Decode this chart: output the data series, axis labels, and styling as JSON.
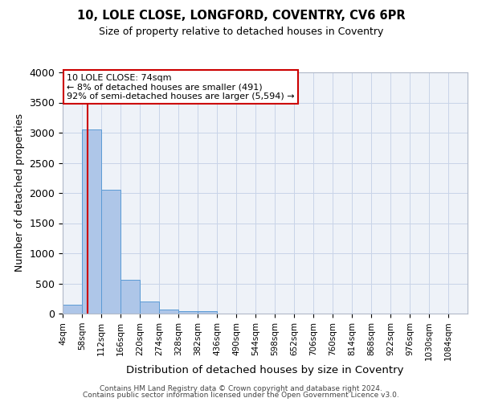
{
  "title": "10, LOLE CLOSE, LONGFORD, COVENTRY, CV6 6PR",
  "subtitle": "Size of property relative to detached houses in Coventry",
  "xlabel": "Distribution of detached houses by size in Coventry",
  "ylabel": "Number of detached properties",
  "bar_left_edges": [
    4,
    58,
    112,
    166,
    220,
    274,
    328,
    382,
    436,
    490,
    544,
    598,
    652,
    706,
    760,
    814,
    868,
    922,
    976,
    1030
  ],
  "bar_heights": [
    150,
    3060,
    2060,
    560,
    205,
    70,
    45,
    40,
    0,
    0,
    0,
    0,
    0,
    0,
    0,
    0,
    0,
    0,
    0,
    0
  ],
  "bin_width": 54,
  "bar_color": "#aec6e8",
  "bar_edge_color": "#5b9bd5",
  "vline_x": 74,
  "vline_color": "#cc0000",
  "ylim": [
    0,
    4000
  ],
  "yticks": [
    0,
    500,
    1000,
    1500,
    2000,
    2500,
    3000,
    3500,
    4000
  ],
  "xtick_labels": [
    "4sqm",
    "58sqm",
    "112sqm",
    "166sqm",
    "220sqm",
    "274sqm",
    "328sqm",
    "382sqm",
    "436sqm",
    "490sqm",
    "544sqm",
    "598sqm",
    "652sqm",
    "706sqm",
    "760sqm",
    "814sqm",
    "868sqm",
    "922sqm",
    "976sqm",
    "1030sqm",
    "1084sqm"
  ],
  "annotation_title": "10 LOLE CLOSE: 74sqm",
  "annotation_line1": "← 8% of detached houses are smaller (491)",
  "annotation_line2": "92% of semi-detached houses are larger (5,594) →",
  "annotation_box_color": "#ffffff",
  "annotation_box_edge_color": "#cc0000",
  "footer1": "Contains HM Land Registry data © Crown copyright and database right 2024.",
  "footer2": "Contains public sector information licensed under the Open Government Licence v3.0.",
  "bg_color": "#eef2f8",
  "grid_color": "#c8d4e8"
}
